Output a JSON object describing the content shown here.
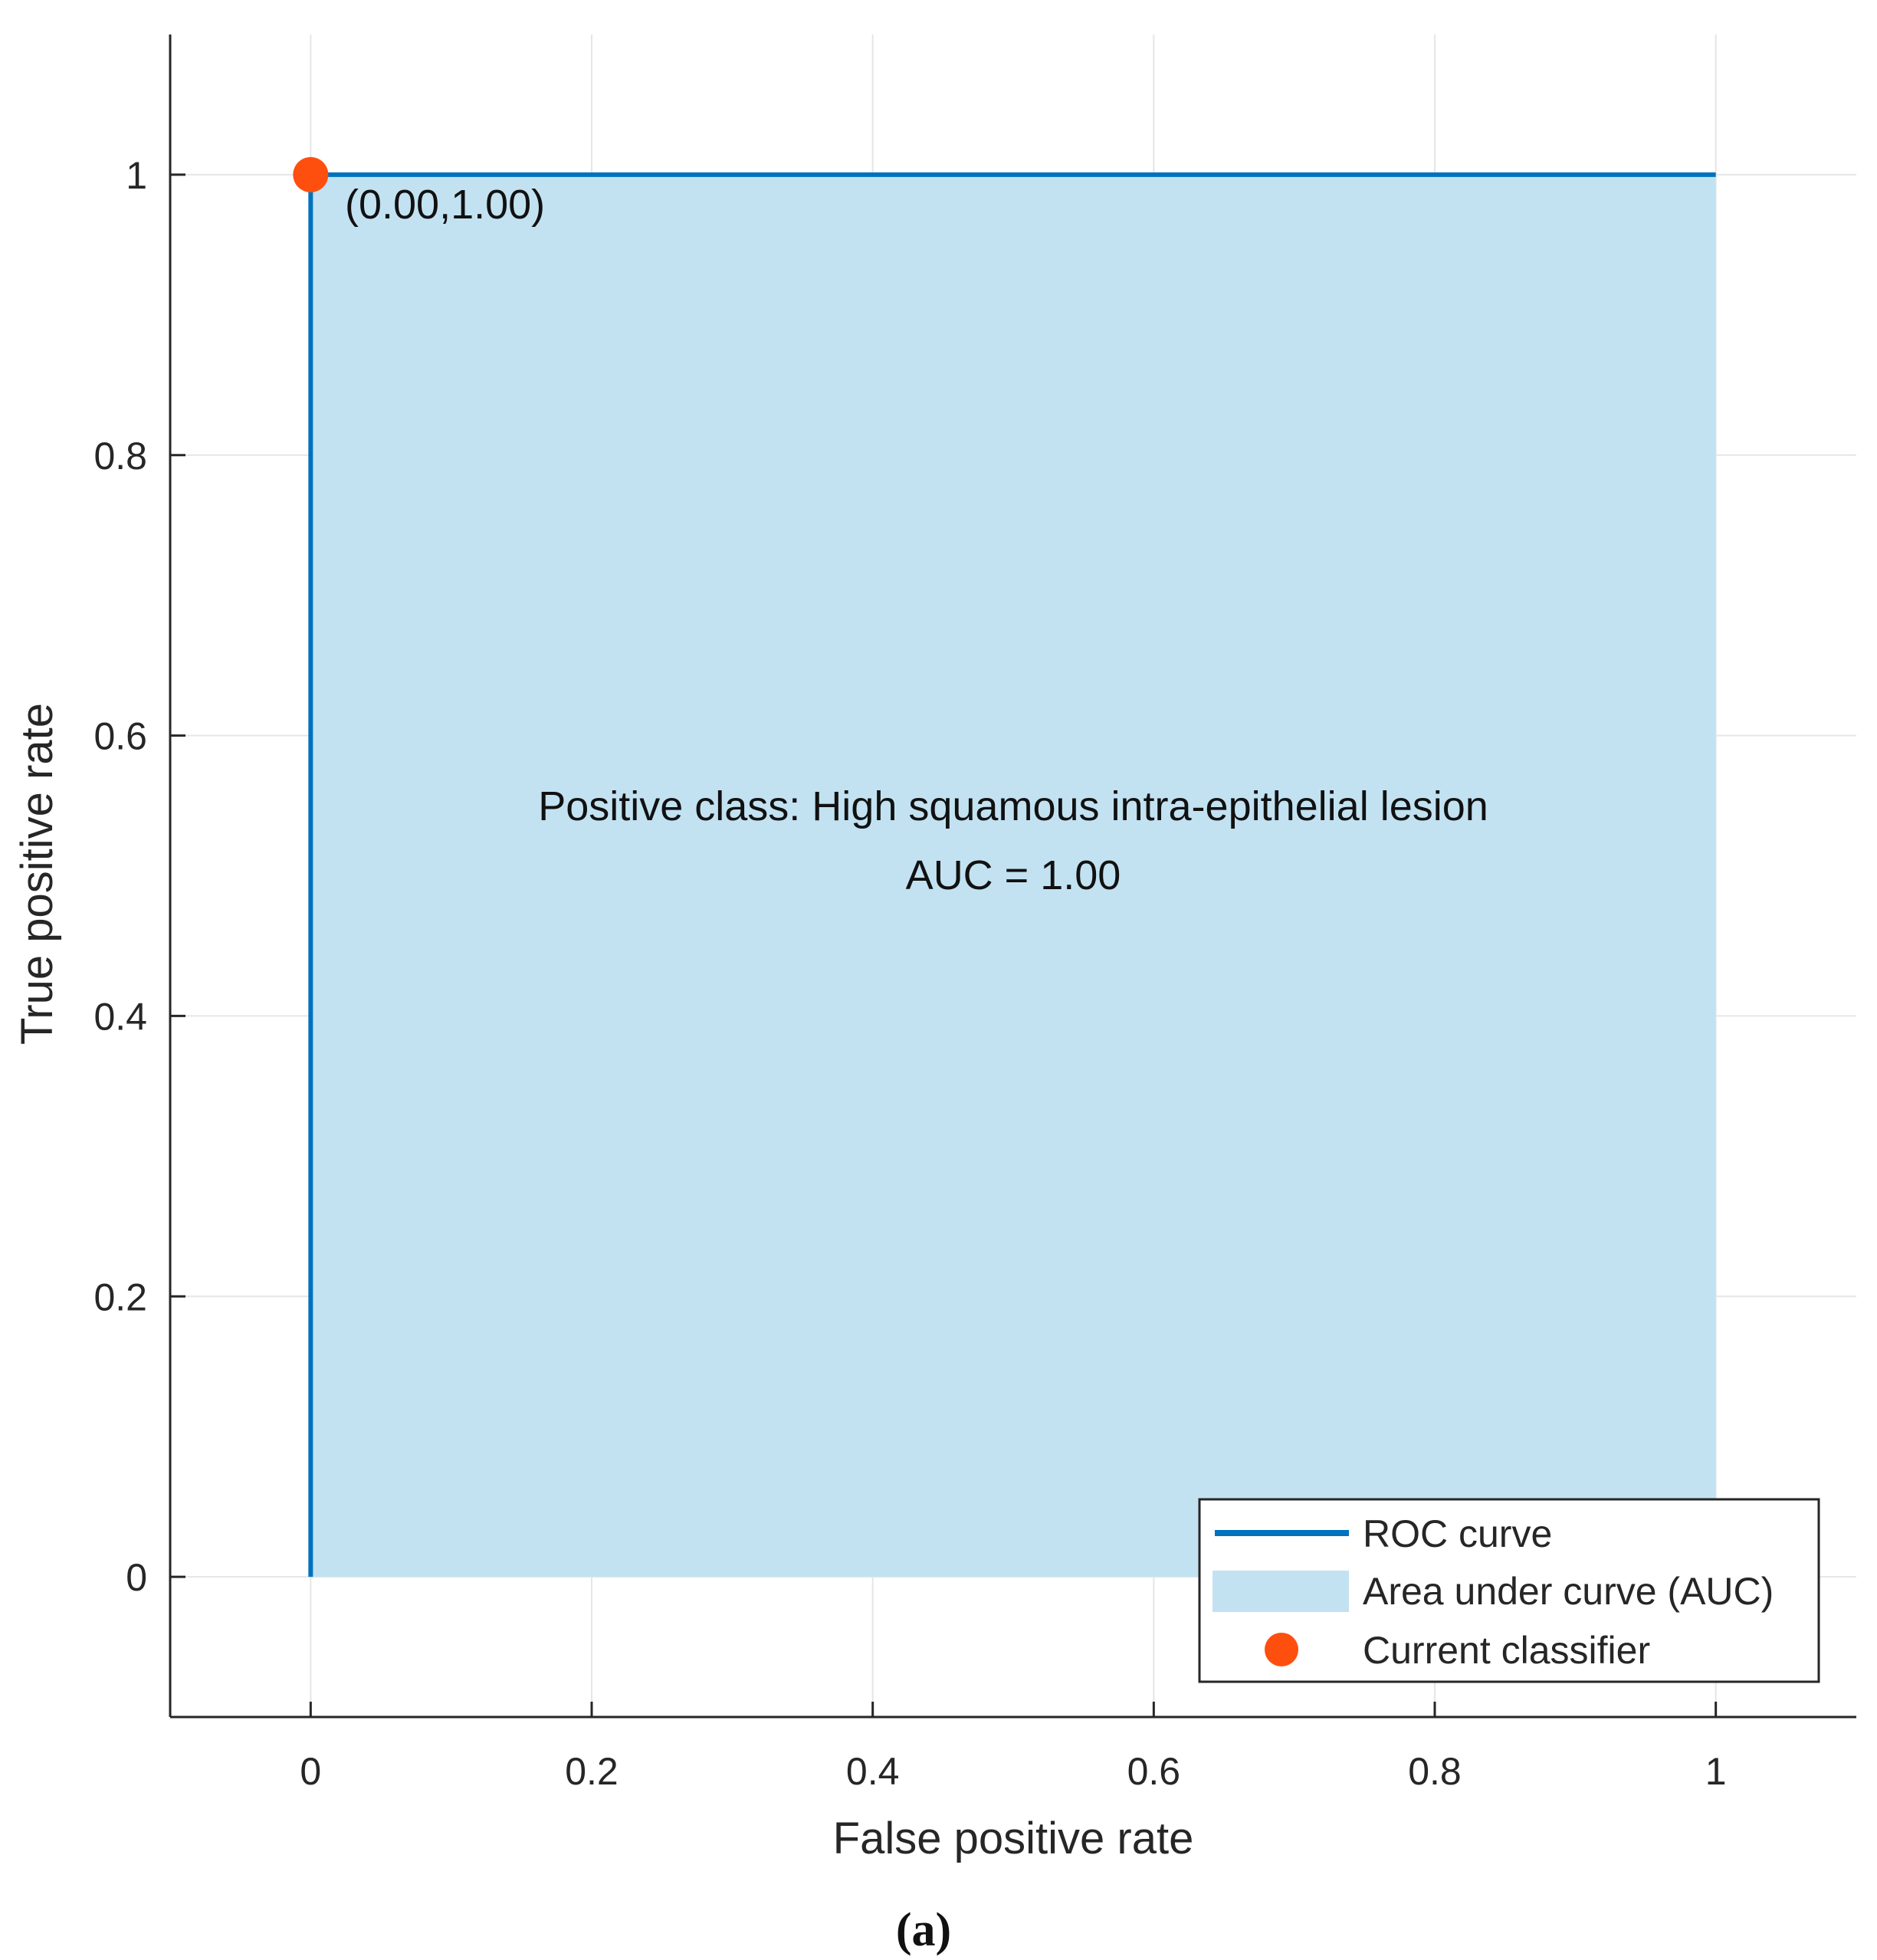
{
  "chart_data": {
    "type": "line",
    "xlabel": "False positive rate",
    "ylabel": "True positive rate",
    "xlim": [
      -0.1,
      1.1
    ],
    "ylim": [
      -0.1,
      1.1
    ],
    "x_ticks": [
      0,
      0.2,
      0.4,
      0.6,
      0.8,
      1
    ],
    "x_tick_labels": [
      "0",
      "0.2",
      "0.4",
      "0.6",
      "0.8",
      "1"
    ],
    "y_ticks": [
      0,
      0.2,
      0.4,
      0.6,
      0.8,
      1
    ],
    "y_tick_labels": [
      "0",
      "0.2",
      "0.4",
      "0.6",
      "0.8",
      "1"
    ],
    "grid": true,
    "series": [
      {
        "name": "ROC curve",
        "x": [
          0,
          0,
          1
        ],
        "y": [
          0,
          1,
          1
        ]
      }
    ],
    "area": {
      "name": "Area under curve (AUC)",
      "x": [
        0,
        0,
        1,
        1
      ],
      "y": [
        0,
        1,
        1,
        0
      ]
    },
    "current_classifier": {
      "name": "Current classifier",
      "x": 0,
      "y": 1,
      "label": "(0.00,1.00)"
    },
    "annotations": [
      "Positive class: High squamous intra-epithelial lesion",
      "AUC = 1.00"
    ],
    "legend": {
      "placement": "bottom-right",
      "entries": [
        "ROC curve",
        "Area under curve (AUC)",
        "Current classifier"
      ]
    },
    "colors": {
      "roc_line": "#0072BD",
      "auc_fill": "#C2E2F2",
      "classifier_point": "#FF4F0F",
      "grid": "#E6E6E6",
      "axis": "#262626"
    }
  },
  "caption": "(a)"
}
